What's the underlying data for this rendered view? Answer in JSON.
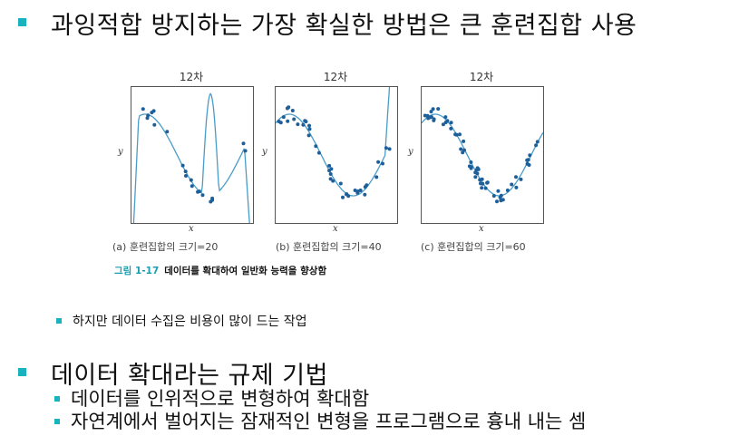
{
  "heading1": "과잉적합 방지하는 가장 확실한 방법은 큰 훈련집합 사용",
  "figure": {
    "panels": [
      {
        "title": "12차",
        "caption": "(a) 훈련집합의 크기=20",
        "x_label": "x",
        "y_label": "y"
      },
      {
        "title": "12차",
        "caption": "(b) 훈련집합의 크기=40",
        "x_label": "x",
        "y_label": "y"
      },
      {
        "title": "12차",
        "caption": "(c) 훈련집합의 크기=60",
        "x_label": "x",
        "y_label": "y"
      }
    ],
    "caption_number": "그림 1-17",
    "caption_text": "데이터를 확대하여 일반화 능력을 향상함"
  },
  "bullet_small": "하지만 데이터 수집은 비용이 많이 드는 작업",
  "heading2": "데이터 확대라는 규제 기법",
  "sub1": "데이터를 인위적으로 변형하여 확대함",
  "sub2": "자연계에서 벌어지는 잠재적인 변형을 프로그램으로 흉내 내는 셈",
  "colors": {
    "accent": "#19b3c0",
    "curve": "#4a9cc8",
    "point": "#1f5f99"
  }
}
